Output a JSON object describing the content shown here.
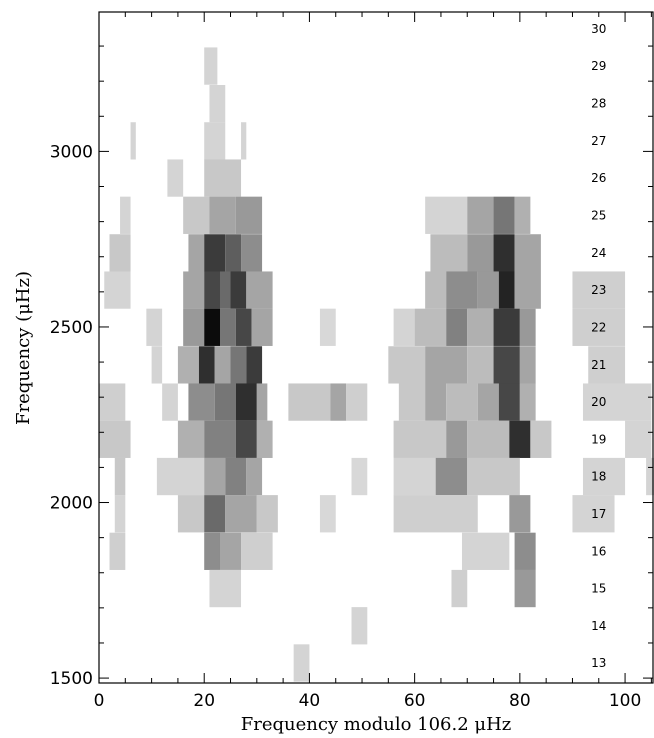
{
  "chart_data": {
    "type": "echelle",
    "xlabel": "Frequency modulo 106.2 μHz",
    "ylabel": "Frequency (μHz)",
    "xlim": [
      0,
      105.5
    ],
    "ylim": [
      1486,
      3397
    ],
    "xticks": [
      0,
      20,
      40,
      60,
      80,
      100
    ],
    "yticks": [
      1500,
      2000,
      2500,
      3000
    ],
    "xticks_minor": [
      5,
      10,
      15,
      25,
      30,
      35,
      45,
      50,
      55,
      65,
      70,
      75,
      85,
      90,
      95,
      105
    ],
    "yticks_minor": [
      1600,
      1700,
      1800,
      1900,
      2100,
      2200,
      2300,
      2400,
      2600,
      2700,
      2800,
      2900,
      3100,
      3200,
      3300
    ],
    "order_label_x": 95,
    "order_labels": [
      13,
      14,
      15,
      16,
      17,
      18,
      19,
      20,
      21,
      22,
      23,
      24,
      25,
      26,
      27,
      28,
      29,
      30
    ],
    "order_label_y": [
      1543,
      1649,
      1755,
      1861,
      1968,
      2074,
      2180,
      2286,
      2392,
      2499,
      2605,
      2711,
      2818,
      2924,
      3030,
      3136,
      3243,
      3349
    ],
    "row_height": 106.2,
    "cells": [
      [
        29,
        20,
        22.5,
        0.1
      ],
      [
        28,
        21,
        24,
        0.1
      ],
      [
        27,
        6,
        7,
        0.1
      ],
      [
        27,
        20,
        24,
        0.1
      ],
      [
        27,
        27,
        28,
        0.1
      ],
      [
        26,
        13,
        16,
        0.1
      ],
      [
        26,
        20,
        27,
        0.15
      ],
      [
        25,
        4,
        6,
        0.1
      ],
      [
        25,
        16,
        21,
        0.15
      ],
      [
        25,
        21,
        26,
        0.3
      ],
      [
        25,
        26,
        31,
        0.35
      ],
      [
        25,
        62,
        70,
        0.1
      ],
      [
        25,
        70,
        75,
        0.3
      ],
      [
        25,
        75,
        79,
        0.5
      ],
      [
        25,
        79,
        82,
        0.25
      ],
      [
        24,
        2,
        6,
        0.15
      ],
      [
        24,
        17,
        20,
        0.3
      ],
      [
        24,
        20,
        24,
        0.75
      ],
      [
        24,
        24,
        27,
        0.6
      ],
      [
        24,
        27,
        31,
        0.4
      ],
      [
        24,
        63,
        70,
        0.2
      ],
      [
        24,
        70,
        75,
        0.35
      ],
      [
        24,
        75,
        79,
        0.8
      ],
      [
        24,
        79,
        84,
        0.3
      ],
      [
        23,
        1,
        6,
        0.1
      ],
      [
        23,
        16,
        20,
        0.3
      ],
      [
        23,
        20,
        23,
        0.7
      ],
      [
        23,
        23,
        25,
        0.55
      ],
      [
        23,
        25,
        28,
        0.75
      ],
      [
        23,
        28,
        33,
        0.3
      ],
      [
        23,
        62,
        66,
        0.2
      ],
      [
        23,
        66,
        72,
        0.4
      ],
      [
        23,
        72,
        76,
        0.35
      ],
      [
        23,
        76,
        79,
        0.85
      ],
      [
        23,
        79,
        84,
        0.3
      ],
      [
        23,
        90,
        100,
        0.12
      ],
      [
        22,
        9,
        12,
        0.1
      ],
      [
        22,
        16,
        20,
        0.35
      ],
      [
        22,
        20,
        23,
        0.95
      ],
      [
        22,
        23,
        26,
        0.5
      ],
      [
        22,
        26,
        29,
        0.7
      ],
      [
        22,
        29,
        33,
        0.3
      ],
      [
        22,
        42,
        45,
        0.08
      ],
      [
        22,
        56,
        60,
        0.1
      ],
      [
        22,
        60,
        66,
        0.2
      ],
      [
        22,
        66,
        70,
        0.45
      ],
      [
        22,
        70,
        75,
        0.25
      ],
      [
        22,
        75,
        80,
        0.75
      ],
      [
        22,
        80,
        83,
        0.35
      ],
      [
        22,
        90,
        100,
        0.12
      ],
      [
        21,
        10,
        12,
        0.1
      ],
      [
        21,
        15,
        19,
        0.25
      ],
      [
        21,
        19,
        22,
        0.8
      ],
      [
        21,
        22,
        25,
        0.3
      ],
      [
        21,
        25,
        28,
        0.5
      ],
      [
        21,
        28,
        31,
        0.75
      ],
      [
        21,
        55,
        62,
        0.15
      ],
      [
        21,
        62,
        70,
        0.3
      ],
      [
        21,
        70,
        75,
        0.2
      ],
      [
        21,
        75,
        80,
        0.7
      ],
      [
        21,
        80,
        83,
        0.3
      ],
      [
        21,
        93,
        100,
        0.12
      ],
      [
        20,
        0,
        5,
        0.12
      ],
      [
        20,
        12,
        15,
        0.1
      ],
      [
        20,
        17,
        22,
        0.4
      ],
      [
        20,
        22,
        26,
        0.5
      ],
      [
        20,
        26,
        30,
        0.8
      ],
      [
        20,
        30,
        32,
        0.3
      ],
      [
        20,
        36,
        44,
        0.15
      ],
      [
        20,
        44,
        47,
        0.3
      ],
      [
        20,
        47,
        51,
        0.12
      ],
      [
        20,
        57,
        62,
        0.15
      ],
      [
        20,
        62,
        66,
        0.3
      ],
      [
        20,
        66,
        72,
        0.2
      ],
      [
        20,
        72,
        76,
        0.3
      ],
      [
        20,
        76,
        80,
        0.7
      ],
      [
        20,
        80,
        83,
        0.25
      ],
      [
        20,
        92,
        105,
        0.1
      ],
      [
        19,
        0,
        6,
        0.15
      ],
      [
        19,
        15,
        20,
        0.25
      ],
      [
        19,
        20,
        26,
        0.45
      ],
      [
        19,
        26,
        30,
        0.7
      ],
      [
        19,
        30,
        33,
        0.25
      ],
      [
        19,
        56,
        66,
        0.15
      ],
      [
        19,
        66,
        70,
        0.35
      ],
      [
        19,
        70,
        78,
        0.2
      ],
      [
        19,
        78,
        82,
        0.8
      ],
      [
        19,
        82,
        86,
        0.15
      ],
      [
        19,
        100,
        105,
        0.1
      ],
      [
        18,
        3,
        5,
        0.15
      ],
      [
        18,
        11,
        20,
        0.1
      ],
      [
        18,
        20,
        24,
        0.3
      ],
      [
        18,
        24,
        28,
        0.45
      ],
      [
        18,
        28,
        31,
        0.3
      ],
      [
        18,
        48,
        51,
        0.08
      ],
      [
        18,
        56,
        64,
        0.1
      ],
      [
        18,
        64,
        70,
        0.4
      ],
      [
        18,
        70,
        80,
        0.15
      ],
      [
        18,
        92,
        100,
        0.1
      ],
      [
        18,
        104,
        105.5,
        0.1
      ],
      [
        17,
        3,
        5,
        0.1
      ],
      [
        17,
        15,
        20,
        0.15
      ],
      [
        17,
        20,
        24,
        0.55
      ],
      [
        17,
        24,
        30,
        0.3
      ],
      [
        17,
        30,
        34,
        0.15
      ],
      [
        17,
        42,
        45,
        0.08
      ],
      [
        17,
        56,
        72,
        0.12
      ],
      [
        17,
        78,
        82,
        0.35
      ],
      [
        17,
        90,
        98,
        0.1
      ],
      [
        16,
        2,
        5,
        0.12
      ],
      [
        16,
        20,
        23,
        0.4
      ],
      [
        16,
        23,
        27,
        0.3
      ],
      [
        16,
        27,
        33,
        0.12
      ],
      [
        16,
        69,
        78,
        0.1
      ],
      [
        16,
        79,
        83,
        0.4
      ],
      [
        15,
        21,
        27,
        0.1
      ],
      [
        15,
        67,
        70,
        0.12
      ],
      [
        15,
        79,
        83,
        0.35
      ],
      [
        14,
        48,
        51,
        0.1
      ],
      [
        13,
        37,
        40,
        0.1
      ]
    ]
  }
}
